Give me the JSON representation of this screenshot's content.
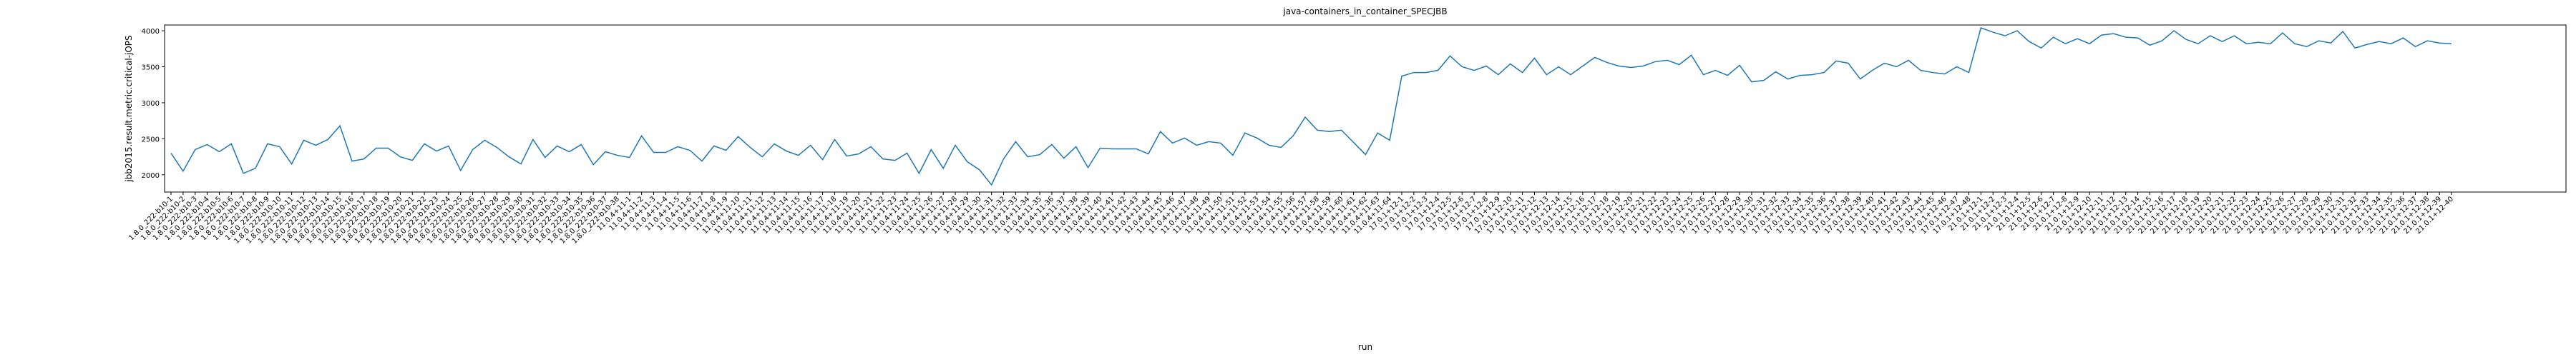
{
  "chart_data": {
    "type": "line",
    "title": "java-containers_in_container_SPECJBB",
    "xlabel": "run",
    "ylabel": "jbb2015.result.metric.critical-jOPS",
    "ylim": [
      1760,
      4080
    ],
    "yticks": [
      2000,
      2500,
      3000,
      3500,
      4000
    ],
    "grid": false,
    "categories": [
      "1.8.0_222-b10-1",
      "1.8.0_222-b10-2",
      "1.8.0_222-b10-3",
      "1.8.0_222-b10-4",
      "1.8.0_222-b10-5",
      "1.8.0_222-b10-6",
      "1.8.0_222-b10-7",
      "1.8.0_222-b10-8",
      "1.8.0_222-b10-9",
      "1.8.0_222-b10-10",
      "1.8.0_222-b10-11",
      "1.8.0_222-b10-12",
      "1.8.0_222-b10-13",
      "1.8.0_222-b10-14",
      "1.8.0_222-b10-15",
      "1.8.0_222-b10-16",
      "1.8.0_222-b10-17",
      "1.8.0_222-b10-18",
      "1.8.0_222-b10-19",
      "1.8.0_222-b10-20",
      "1.8.0_222-b10-21",
      "1.8.0_222-b10-22",
      "1.8.0_222-b10-23",
      "1.8.0_222-b10-24",
      "1.8.0_222-b10-25",
      "1.8.0_222-b10-26",
      "1.8.0_222-b10-27",
      "1.8.0_222-b10-28",
      "1.8.0_222-b10-29",
      "1.8.0_222-b10-30",
      "1.8.0_222-b10-31",
      "1.8.0_222-b10-32",
      "1.8.0_222-b10-33",
      "1.8.0_222-b10-34",
      "1.8.0_222-b10-35",
      "1.8.0_222-b10-36",
      "1.8.0_222-b10-37",
      "1.8.0_222-b10-38",
      "11.0.4+11-1",
      "11.0.4+11-2",
      "11.0.4+11-3",
      "11.0.4+11-4",
      "11.0.4+11-5",
      "11.0.4+11-6",
      "11.0.4+11-7",
      "11.0.4+11-8",
      "11.0.4+11-9",
      "11.0.4+11-10",
      "11.0.4+11-11",
      "11.0.4+11-12",
      "11.0.4+11-13",
      "11.0.4+11-14",
      "11.0.4+11-15",
      "11.0.4+11-16",
      "11.0.4+11-17",
      "11.0.4+11-18",
      "11.0.4+11-19",
      "11.0.4+11-20",
      "11.0.4+11-21",
      "11.0.4+11-22",
      "11.0.4+11-23",
      "11.0.4+11-24",
      "11.0.4+11-25",
      "11.0.4+11-26",
      "11.0.4+11-27",
      "11.0.4+11-28",
      "11.0.4+11-29",
      "11.0.4+11-30",
      "11.0.4+11-31",
      "11.0.4+11-32",
      "11.0.4+11-33",
      "11.0.4+11-34",
      "11.0.4+11-35",
      "11.0.4+11-36",
      "11.0.4+11-37",
      "11.0.4+11-38",
      "11.0.4+11-39",
      "11.0.4+11-40",
      "11.0.4+11-41",
      "11.0.4+11-42",
      "11.0.4+11-43",
      "11.0.4+11-44",
      "11.0.4+11-45",
      "11.0.4+11-46",
      "11.0.4+11-47",
      "11.0.4+11-48",
      "11.0.4+11-49",
      "11.0.4+11-50",
      "11.0.4+11-51",
      "11.0.4+11-52",
      "11.0.4+11-53",
      "11.0.4+11-54",
      "11.0.4+11-55",
      "11.0.4+11-56",
      "11.0.4+11-57",
      "11.0.4+11-58",
      "11.0.4+11-59",
      "11.0.4+11-60",
      "11.0.4+11-61",
      "11.0.4+11-62",
      "11.0.4+11-63",
      "11.0.4+11-64",
      "17.0.1+12-1",
      "17.0.1+12-2",
      "17.0.1+12-3",
      "17.0.1+12-4",
      "17.0.1+12-5",
      "17.0.1+12-6",
      "17.0.1+12-7",
      "17.0.1+12-8",
      "17.0.1+12-9",
      "17.0.1+12-10",
      "17.0.1+12-11",
      "17.0.1+12-12",
      "17.0.1+12-13",
      "17.0.1+12-14",
      "17.0.1+12-15",
      "17.0.1+12-16",
      "17.0.1+12-17",
      "17.0.1+12-18",
      "17.0.1+12-19",
      "17.0.1+12-20",
      "17.0.1+12-21",
      "17.0.1+12-22",
      "17.0.1+12-23",
      "17.0.1+12-24",
      "17.0.1+12-25",
      "17.0.1+12-26",
      "17.0.1+12-27",
      "17.0.1+12-28",
      "17.0.1+12-29",
      "17.0.1+12-30",
      "17.0.1+12-31",
      "17.0.1+12-32",
      "17.0.1+12-33",
      "17.0.1+12-34",
      "17.0.1+12-35",
      "17.0.1+12-36",
      "17.0.1+12-37",
      "17.0.1+12-38",
      "17.0.1+12-39",
      "17.0.1+12-40",
      "17.0.1+12-41",
      "17.0.1+12-42",
      "17.0.1+12-43",
      "17.0.1+12-44",
      "17.0.1+12-45",
      "17.0.1+12-46",
      "17.0.1+12-47",
      "17.0.1+12-48",
      "21.0.1+12-1",
      "21.0.1+12-2",
      "21.0.1+12-3",
      "21.0.1+12-4",
      "21.0.1+12-5",
      "21.0.1+12-6",
      "21.0.1+12-7",
      "21.0.1+12-8",
      "21.0.1+12-9",
      "21.0.1+12-10",
      "21.0.1+12-11",
      "21.0.1+12-12",
      "21.0.1+12-13",
      "21.0.1+12-14",
      "21.0.1+12-15",
      "21.0.1+12-16",
      "21.0.1+12-17",
      "21.0.1+12-18",
      "21.0.1+12-19",
      "21.0.1+12-20",
      "21.0.1+12-21",
      "21.0.1+12-22",
      "21.0.1+12-23",
      "21.0.1+12-24",
      "21.0.1+12-25",
      "21.0.1+12-26",
      "21.0.1+12-27",
      "21.0.1+12-28",
      "21.0.1+12-29",
      "21.0.1+12-30",
      "21.0.1+12-31",
      "21.0.1+12-32",
      "21.0.1+12-33",
      "21.0.1+12-34",
      "21.0.1+12-35",
      "21.0.1+12-36",
      "21.0.1+12-37",
      "21.0.1+12-38",
      "21.0.1+12-39",
      "21.0.1+12-40"
    ],
    "series": [
      {
        "color": "#1f77b4",
        "values": [
          2300,
          2050,
          2350,
          2420,
          2320,
          2430,
          2020,
          2090,
          2430,
          2390,
          2150,
          2480,
          2410,
          2490,
          2680,
          2190,
          2220,
          2370,
          2370,
          2250,
          2200,
          2430,
          2330,
          2400,
          2060,
          2350,
          2480,
          2380,
          2250,
          2150,
          2490,
          2240,
          2400,
          2320,
          2420,
          2140,
          2320,
          2270,
          2240,
          2540,
          2310,
          2310,
          2390,
          2340,
          2190,
          2400,
          2340,
          2530,
          2380,
          2250,
          2430,
          2330,
          2270,
          2410,
          2210,
          2490,
          2260,
          2290,
          2390,
          2220,
          2200,
          2300,
          2020,
          2350,
          2090,
          2410,
          2180,
          2070,
          1860,
          2220,
          2460,
          2250,
          2280,
          2420,
          2230,
          2390,
          2100,
          2370,
          2360,
          2360,
          2360,
          2290,
          2600,
          2440,
          2510,
          2410,
          2460,
          2440,
          2270,
          2580,
          2510,
          2410,
          2380,
          2540,
          2800,
          2620,
          2600,
          2620,
          2450,
          2280,
          2580,
          2480,
          3370,
          3420,
          3420,
          3450,
          3650,
          3500,
          3450,
          3510,
          3390,
          3540,
          3420,
          3620,
          3390,
          3500,
          3390,
          3510,
          3630,
          3560,
          3510,
          3490,
          3510,
          3570,
          3590,
          3530,
          3660,
          3390,
          3450,
          3380,
          3520,
          3290,
          3310,
          3430,
          3330,
          3380,
          3390,
          3420,
          3580,
          3550,
          3330,
          3450,
          3550,
          3500,
          3590,
          3450,
          3420,
          3400,
          3500,
          3420,
          4040,
          3980,
          3930,
          4000,
          3850,
          3760,
          3910,
          3820,
          3890,
          3820,
          3940,
          3960,
          3910,
          3900,
          3800,
          3860,
          4000,
          3880,
          3820,
          3930,
          3850,
          3930,
          3820,
          3840,
          3820,
          3970,
          3820,
          3780,
          3860,
          3830,
          3990,
          3760,
          3810,
          3850,
          3820,
          3900,
          3780,
          3860,
          3830,
          3820
        ]
      }
    ]
  }
}
